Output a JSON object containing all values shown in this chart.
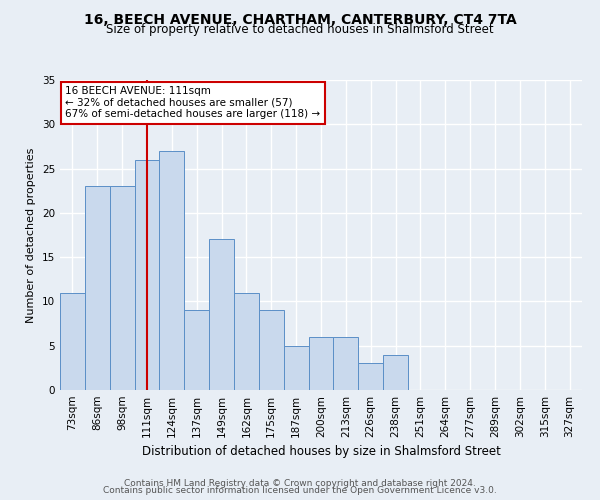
{
  "title": "16, BEECH AVENUE, CHARTHAM, CANTERBURY, CT4 7TA",
  "subtitle": "Size of property relative to detached houses in Shalmsford Street",
  "xlabel": "Distribution of detached houses by size in Shalmsford Street",
  "ylabel": "Number of detached properties",
  "footer1": "Contains HM Land Registry data © Crown copyright and database right 2024.",
  "footer2": "Contains public sector information licensed under the Open Government Licence v3.0.",
  "categories": [
    "73sqm",
    "86sqm",
    "98sqm",
    "111sqm",
    "124sqm",
    "137sqm",
    "149sqm",
    "162sqm",
    "175sqm",
    "187sqm",
    "200sqm",
    "213sqm",
    "226sqm",
    "238sqm",
    "251sqm",
    "264sqm",
    "277sqm",
    "289sqm",
    "302sqm",
    "315sqm",
    "327sqm"
  ],
  "values": [
    11,
    23,
    23,
    26,
    27,
    9,
    17,
    11,
    9,
    5,
    6,
    6,
    3,
    4,
    0,
    0,
    0,
    0,
    0,
    0,
    0
  ],
  "bar_color": "#c9d9ed",
  "bar_edge_color": "#5b8fc7",
  "vline_index": 3,
  "vline_color": "#cc0000",
  "annotation_title": "16 BEECH AVENUE: 111sqm",
  "annotation_line1": "← 32% of detached houses are smaller (57)",
  "annotation_line2": "67% of semi-detached houses are larger (118) →",
  "annotation_box_edgecolor": "#cc0000",
  "annotation_box_facecolor": "#ffffff",
  "ylim": [
    0,
    35
  ],
  "yticks": [
    0,
    5,
    10,
    15,
    20,
    25,
    30,
    35
  ],
  "background_color": "#e8eef5",
  "grid_color": "#ffffff",
  "title_fontsize": 10,
  "subtitle_fontsize": 8.5,
  "xlabel_fontsize": 8.5,
  "ylabel_fontsize": 8,
  "tick_fontsize": 7.5,
  "footer_fontsize": 6.5,
  "footer_color": "#555555"
}
